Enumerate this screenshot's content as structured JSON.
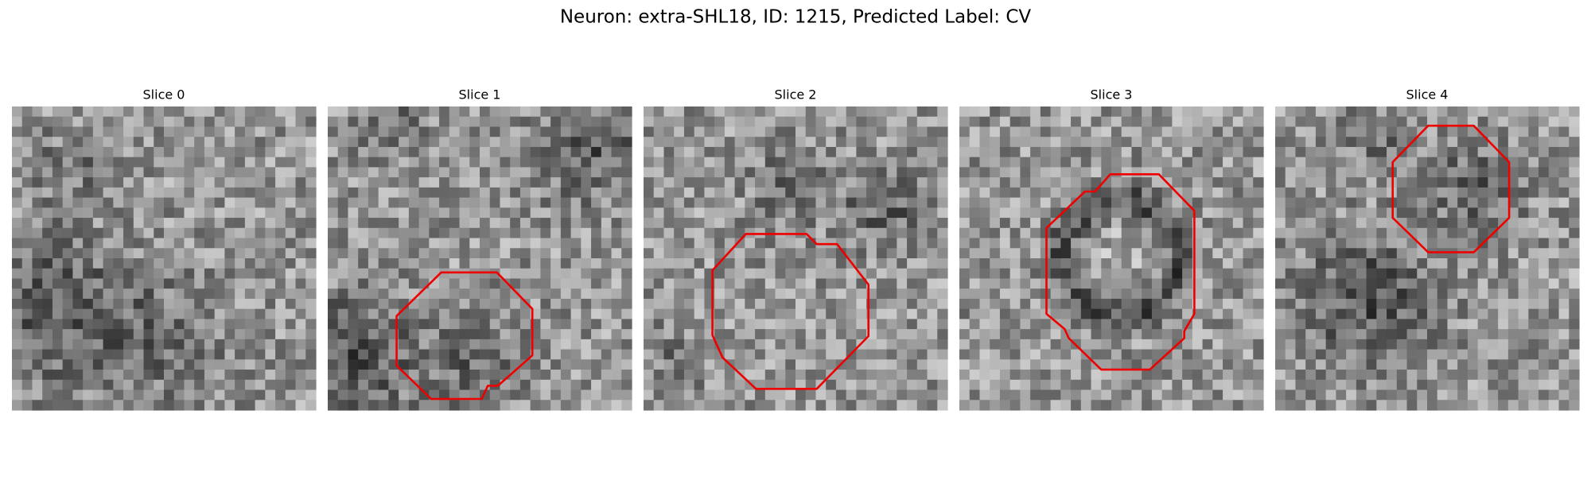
{
  "title": "Neuron: extra-SHL18, ID: 1215, Predicted Label: CV",
  "panels": [
    {
      "title": "Slice 0"
    },
    {
      "title": "Slice 1"
    },
    {
      "title": "Slice 2"
    },
    {
      "title": "Slice 3"
    },
    {
      "title": "Slice 4"
    }
  ]
}
